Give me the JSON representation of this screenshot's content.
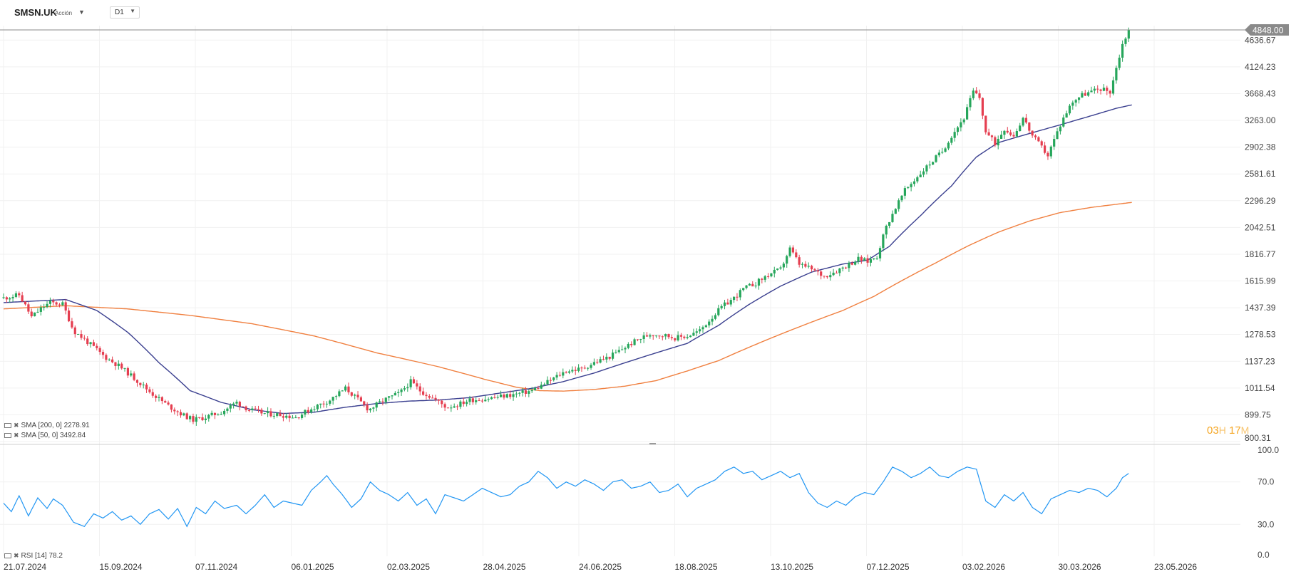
{
  "header": {
    "symbol": "SMSN.UK",
    "instrument_type": "Acción",
    "timeframe": "D1"
  },
  "price_axis": {
    "labels": [
      "4636.67",
      "4124.23",
      "3668.43",
      "3263.00",
      "2902.38",
      "2581.61",
      "2296.29",
      "2042.51",
      "1816.77",
      "1615.99",
      "1437.39",
      "1278.53",
      "1137.23",
      "1011.54",
      "899.75",
      "800.31"
    ],
    "current_price": "4848.00",
    "current_price_color": "#8a8a8a"
  },
  "rsi_axis": {
    "labels": [
      "100.0",
      "70.0",
      "30.0",
      "0.0"
    ]
  },
  "date_axis": {
    "labels": [
      "21.07.2024",
      "15.09.2024",
      "07.11.2024",
      "06.01.2025",
      "02.03.2025",
      "28.04.2025",
      "24.06.2025",
      "18.08.2025",
      "13.10.2025",
      "07.12.2025",
      "03.02.2026",
      "30.03.2026",
      "23.05.2026"
    ]
  },
  "legend": {
    "sma200": "SMA [200, 0] 2278.91",
    "sma50": "SMA [50, 0] 3492.84",
    "rsi": "RSI [14] 78.2"
  },
  "countdown": {
    "hours": "03",
    "hours_unit": "H",
    "minutes": "17",
    "minutes_unit": "M"
  },
  "chart_data": {
    "type": "line",
    "scale": "log",
    "ylim": [
      800.31,
      4848.0
    ],
    "colors": {
      "up": "#26a65b",
      "down": "#e53e50",
      "sma50": "#3a3f8f",
      "sma200": "#f08040",
      "rsi": "#2196f3",
      "price_line": "#8a8a8a"
    },
    "price_anchors": [
      [
        0,
        1500
      ],
      [
        10,
        1520
      ],
      [
        14,
        1450
      ],
      [
        18,
        1380
      ],
      [
        25,
        1440
      ],
      [
        30,
        1470
      ],
      [
        38,
        1460
      ],
      [
        45,
        1300
      ],
      [
        55,
        1230
      ],
      [
        65,
        1160
      ],
      [
        75,
        1110
      ],
      [
        85,
        1050
      ],
      [
        95,
        990
      ],
      [
        105,
        940
      ],
      [
        115,
        900
      ],
      [
        122,
        880
      ],
      [
        130,
        890
      ],
      [
        140,
        910
      ],
      [
        150,
        950
      ],
      [
        158,
        920
      ],
      [
        168,
        905
      ],
      [
        178,
        900
      ],
      [
        188,
        890
      ],
      [
        200,
        930
      ],
      [
        210,
        960
      ],
      [
        220,
        1010
      ],
      [
        225,
        980
      ],
      [
        235,
        920
      ],
      [
        245,
        960
      ],
      [
        255,
        990
      ],
      [
        262,
        1040
      ],
      [
        268,
        1000
      ],
      [
        278,
        960
      ],
      [
        285,
        930
      ],
      [
        292,
        940
      ],
      [
        300,
        960
      ],
      [
        310,
        965
      ],
      [
        320,
        975
      ],
      [
        330,
        985
      ],
      [
        340,
        1000
      ],
      [
        348,
        1030
      ],
      [
        355,
        1060
      ],
      [
        362,
        1090
      ],
      [
        372,
        1100
      ],
      [
        380,
        1130
      ],
      [
        390,
        1160
      ],
      [
        400,
        1210
      ],
      [
        408,
        1250
      ],
      [
        416,
        1280
      ],
      [
        425,
        1275
      ],
      [
        432,
        1260
      ],
      [
        440,
        1270
      ],
      [
        448,
        1300
      ],
      [
        456,
        1380
      ],
      [
        462,
        1440
      ],
      [
        470,
        1500
      ],
      [
        476,
        1560
      ],
      [
        484,
        1600
      ],
      [
        492,
        1660
      ],
      [
        500,
        1700
      ],
      [
        506,
        1860
      ],
      [
        512,
        1740
      ],
      [
        520,
        1700
      ],
      [
        528,
        1650
      ],
      [
        536,
        1690
      ],
      [
        544,
        1740
      ],
      [
        550,
        1780
      ],
      [
        556,
        1760
      ],
      [
        562,
        1800
      ],
      [
        568,
        2050
      ],
      [
        573,
        2200
      ],
      [
        580,
        2400
      ],
      [
        588,
        2550
      ],
      [
        596,
        2700
      ],
      [
        604,
        2850
      ],
      [
        610,
        3050
      ],
      [
        618,
        3300
      ],
      [
        624,
        3700
      ],
      [
        628,
        3600
      ],
      [
        632,
        3100
      ],
      [
        638,
        2950
      ],
      [
        644,
        3150
      ],
      [
        650,
        3050
      ],
      [
        656,
        3300
      ],
      [
        662,
        3050
      ],
      [
        668,
        2900
      ],
      [
        672,
        2800
      ],
      [
        676,
        3000
      ],
      [
        682,
        3300
      ],
      [
        688,
        3550
      ],
      [
        694,
        3650
      ],
      [
        700,
        3700
      ],
      [
        706,
        3750
      ],
      [
        712,
        3700
      ],
      [
        716,
        4100
      ],
      [
        720,
        4550
      ],
      [
        724,
        4848
      ]
    ],
    "sma50_anchors": [
      [
        0,
        1470
      ],
      [
        40,
        1490
      ],
      [
        60,
        1420
      ],
      [
        80,
        1290
      ],
      [
        100,
        1130
      ],
      [
        120,
        1000
      ],
      [
        140,
        950
      ],
      [
        160,
        920
      ],
      [
        180,
        905
      ],
      [
        200,
        910
      ],
      [
        220,
        930
      ],
      [
        240,
        945
      ],
      [
        260,
        955
      ],
      [
        280,
        960
      ],
      [
        300,
        970
      ],
      [
        320,
        990
      ],
      [
        340,
        1010
      ],
      [
        360,
        1040
      ],
      [
        380,
        1080
      ],
      [
        400,
        1130
      ],
      [
        420,
        1180
      ],
      [
        440,
        1230
      ],
      [
        460,
        1330
      ],
      [
        480,
        1460
      ],
      [
        500,
        1580
      ],
      [
        520,
        1680
      ],
      [
        540,
        1740
      ],
      [
        556,
        1770
      ],
      [
        570,
        1880
      ],
      [
        590,
        2150
      ],
      [
        610,
        2450
      ],
      [
        626,
        2780
      ],
      [
        640,
        2960
      ],
      [
        660,
        3080
      ],
      [
        680,
        3200
      ],
      [
        700,
        3330
      ],
      [
        716,
        3440
      ],
      [
        726,
        3492
      ]
    ],
    "sma200_anchors": [
      [
        0,
        1430
      ],
      [
        40,
        1450
      ],
      [
        80,
        1430
      ],
      [
        120,
        1390
      ],
      [
        160,
        1340
      ],
      [
        200,
        1270
      ],
      [
        240,
        1180
      ],
      [
        280,
        1110
      ],
      [
        310,
        1050
      ],
      [
        330,
        1015
      ],
      [
        345,
        1000
      ],
      [
        360,
        998
      ],
      [
        380,
        1005
      ],
      [
        400,
        1020
      ],
      [
        420,
        1045
      ],
      [
        440,
        1090
      ],
      [
        460,
        1140
      ],
      [
        480,
        1210
      ],
      [
        500,
        1280
      ],
      [
        520,
        1350
      ],
      [
        540,
        1420
      ],
      [
        560,
        1510
      ],
      [
        580,
        1630
      ],
      [
        600,
        1750
      ],
      [
        620,
        1880
      ],
      [
        640,
        2000
      ],
      [
        660,
        2100
      ],
      [
        680,
        2180
      ],
      [
        700,
        2230
      ],
      [
        726,
        2279
      ]
    ],
    "rsi_anchors": [
      [
        0,
        50
      ],
      [
        5,
        42
      ],
      [
        10,
        57
      ],
      [
        16,
        38
      ],
      [
        22,
        55
      ],
      [
        28,
        45
      ],
      [
        32,
        54
      ],
      [
        38,
        48
      ],
      [
        45,
        32
      ],
      [
        52,
        28
      ],
      [
        58,
        40
      ],
      [
        64,
        36
      ],
      [
        70,
        42
      ],
      [
        76,
        34
      ],
      [
        82,
        38
      ],
      [
        88,
        30
      ],
      [
        94,
        40
      ],
      [
        100,
        44
      ],
      [
        106,
        35
      ],
      [
        112,
        45
      ],
      [
        118,
        28
      ],
      [
        124,
        46
      ],
      [
        130,
        40
      ],
      [
        136,
        52
      ],
      [
        142,
        45
      ],
      [
        150,
        48
      ],
      [
        156,
        40
      ],
      [
        162,
        48
      ],
      [
        168,
        58
      ],
      [
        174,
        46
      ],
      [
        180,
        52
      ],
      [
        186,
        50
      ],
      [
        192,
        48
      ],
      [
        198,
        62
      ],
      [
        204,
        70
      ],
      [
        208,
        76
      ],
      [
        212,
        68
      ],
      [
        218,
        58
      ],
      [
        224,
        46
      ],
      [
        230,
        54
      ],
      [
        236,
        70
      ],
      [
        242,
        62
      ],
      [
        248,
        58
      ],
      [
        254,
        52
      ],
      [
        260,
        60
      ],
      [
        266,
        48
      ],
      [
        272,
        54
      ],
      [
        278,
        40
      ],
      [
        284,
        58
      ],
      [
        290,
        55
      ],
      [
        296,
        52
      ],
      [
        302,
        58
      ],
      [
        308,
        64
      ],
      [
        314,
        60
      ],
      [
        320,
        56
      ],
      [
        326,
        58
      ],
      [
        332,
        66
      ],
      [
        338,
        70
      ],
      [
        344,
        80
      ],
      [
        350,
        74
      ],
      [
        356,
        64
      ],
      [
        362,
        70
      ],
      [
        368,
        66
      ],
      [
        374,
        72
      ],
      [
        380,
        68
      ],
      [
        386,
        62
      ],
      [
        392,
        70
      ],
      [
        398,
        72
      ],
      [
        404,
        64
      ],
      [
        410,
        66
      ],
      [
        416,
        70
      ],
      [
        422,
        60
      ],
      [
        428,
        62
      ],
      [
        434,
        68
      ],
      [
        440,
        56
      ],
      [
        446,
        64
      ],
      [
        452,
        68
      ],
      [
        458,
        72
      ],
      [
        464,
        80
      ],
      [
        470,
        84
      ],
      [
        476,
        78
      ],
      [
        482,
        80
      ],
      [
        488,
        72
      ],
      [
        494,
        76
      ],
      [
        500,
        80
      ],
      [
        506,
        74
      ],
      [
        512,
        78
      ],
      [
        518,
        60
      ],
      [
        524,
        50
      ],
      [
        530,
        46
      ],
      [
        536,
        52
      ],
      [
        542,
        48
      ],
      [
        548,
        56
      ],
      [
        554,
        60
      ],
      [
        560,
        58
      ],
      [
        566,
        70
      ],
      [
        572,
        84
      ],
      [
        578,
        80
      ],
      [
        584,
        74
      ],
      [
        590,
        78
      ],
      [
        596,
        84
      ],
      [
        602,
        76
      ],
      [
        608,
        74
      ],
      [
        614,
        80
      ],
      [
        620,
        84
      ],
      [
        626,
        82
      ],
      [
        632,
        52
      ],
      [
        638,
        46
      ],
      [
        644,
        58
      ],
      [
        650,
        52
      ],
      [
        656,
        60
      ],
      [
        662,
        46
      ],
      [
        668,
        40
      ],
      [
        674,
        54
      ],
      [
        680,
        58
      ],
      [
        686,
        62
      ],
      [
        692,
        60
      ],
      [
        698,
        64
      ],
      [
        704,
        62
      ],
      [
        710,
        56
      ],
      [
        716,
        64
      ],
      [
        720,
        74
      ],
      [
        724,
        78
      ]
    ]
  }
}
